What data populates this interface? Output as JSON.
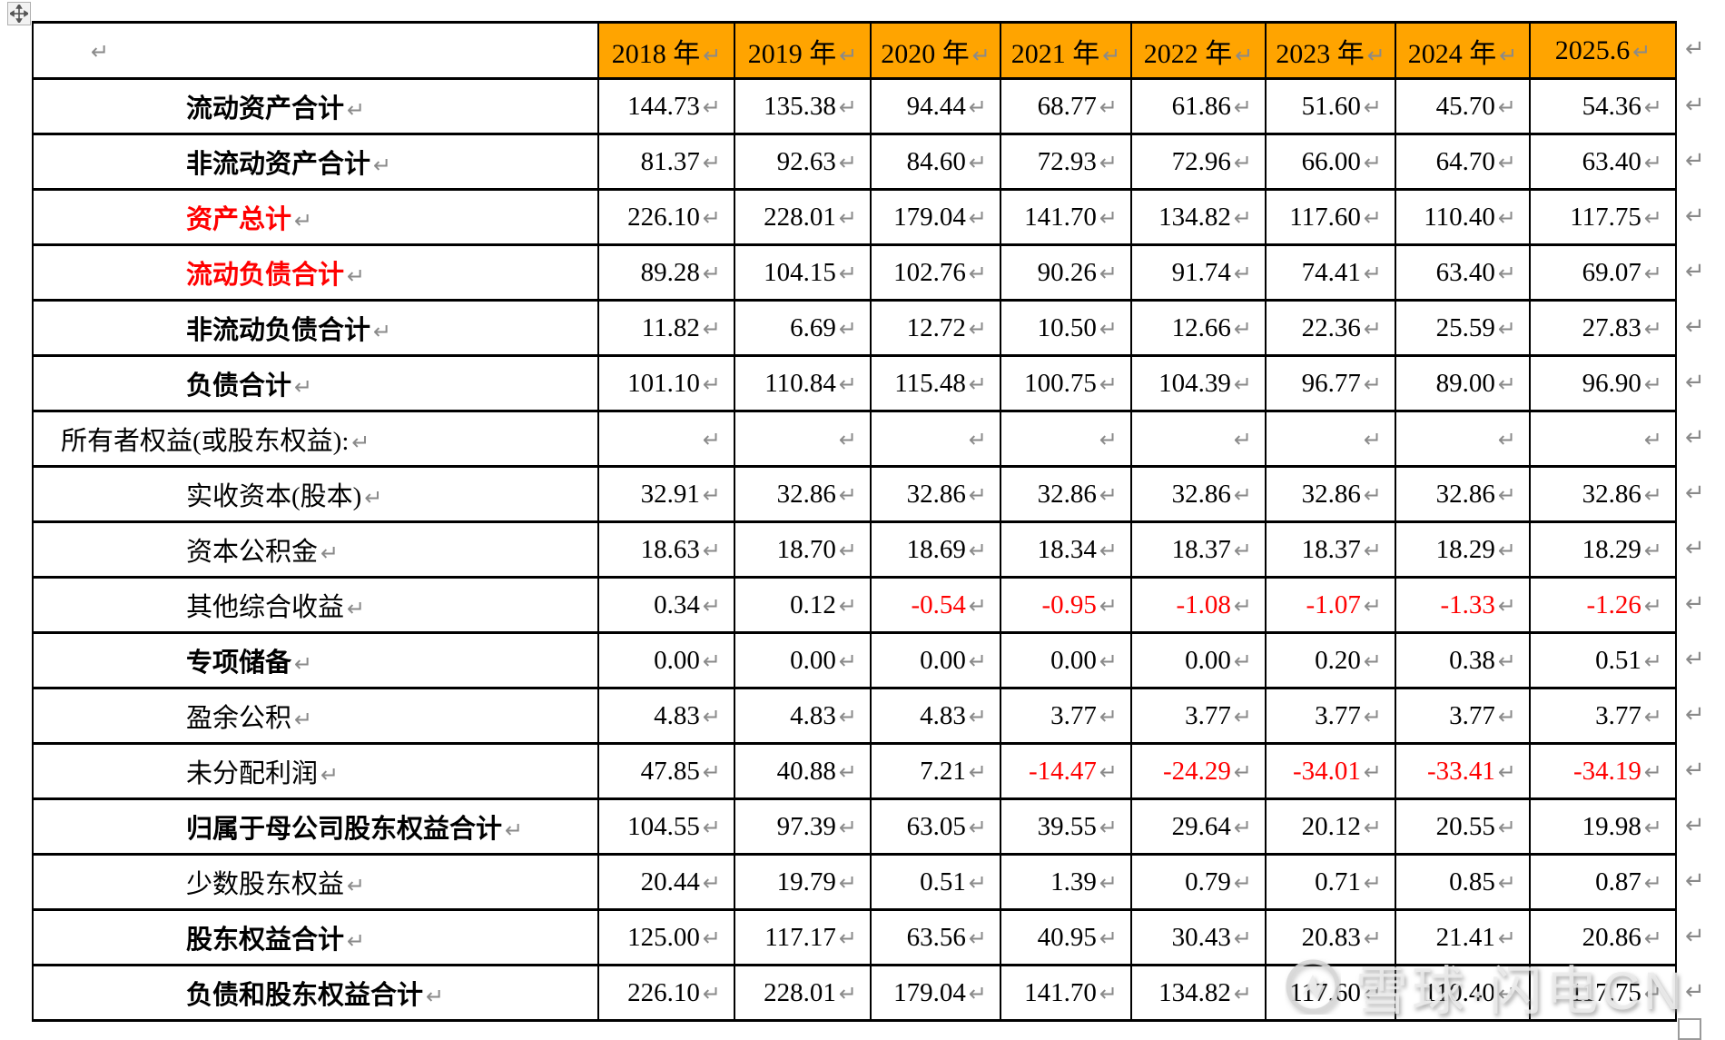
{
  "marks": {
    "cell_end": "↵",
    "row_end": "↵"
  },
  "colors": {
    "header_bg": "#FFA400",
    "negative_text": "#FF0000",
    "highlight_label": "#FF0000",
    "mark_gray": "#8A8A8A",
    "border": "#000000"
  },
  "table": {
    "header": {
      "corner": "",
      "columns": [
        "2018 年",
        "2019 年",
        "2020 年",
        "2021 年",
        "2022 年",
        "2023 年",
        "2024 年",
        "2025.6"
      ]
    },
    "rows": [
      {
        "label": "流动资产合计",
        "bold": true,
        "red": false,
        "section": false,
        "values": [
          "144.73",
          "135.38",
          "94.44",
          "68.77",
          "61.86",
          "51.60",
          "45.70",
          "54.36"
        ]
      },
      {
        "label": "非流动资产合计",
        "bold": true,
        "red": false,
        "section": false,
        "values": [
          "81.37",
          "92.63",
          "84.60",
          "72.93",
          "72.96",
          "66.00",
          "64.70",
          "63.40"
        ]
      },
      {
        "label": "资产总计",
        "bold": true,
        "red": true,
        "section": false,
        "values": [
          "226.10",
          "228.01",
          "179.04",
          "141.70",
          "134.82",
          "117.60",
          "110.40",
          "117.75"
        ]
      },
      {
        "label": "流动负债合计",
        "bold": true,
        "red": true,
        "section": false,
        "values": [
          "89.28",
          "104.15",
          "102.76",
          "90.26",
          "91.74",
          "74.41",
          "63.40",
          "69.07"
        ]
      },
      {
        "label": "非流动负债合计",
        "bold": true,
        "red": false,
        "section": false,
        "values": [
          "11.82",
          "6.69",
          "12.72",
          "10.50",
          "12.66",
          "22.36",
          "25.59",
          "27.83"
        ]
      },
      {
        "label": "负债合计",
        "bold": true,
        "red": false,
        "section": false,
        "values": [
          "101.10",
          "110.84",
          "115.48",
          "100.75",
          "104.39",
          "96.77",
          "89.00",
          "96.90"
        ]
      },
      {
        "label": "所有者权益(或股东权益):",
        "bold": false,
        "red": false,
        "section": true,
        "values": [
          "",
          "",
          "",
          "",
          "",
          "",
          "",
          ""
        ]
      },
      {
        "label": "实收资本(股本)",
        "bold": false,
        "red": false,
        "section": false,
        "values": [
          "32.91",
          "32.86",
          "32.86",
          "32.86",
          "32.86",
          "32.86",
          "32.86",
          "32.86"
        ]
      },
      {
        "label": "资本公积金",
        "bold": false,
        "red": false,
        "section": false,
        "values": [
          "18.63",
          "18.70",
          "18.69",
          "18.34",
          "18.37",
          "18.37",
          "18.29",
          "18.29"
        ]
      },
      {
        "label": "其他综合收益",
        "bold": false,
        "red": false,
        "section": false,
        "values": [
          "0.34",
          "0.12",
          "-0.54",
          "-0.95",
          "-1.08",
          "-1.07",
          "-1.33",
          "-1.26"
        ]
      },
      {
        "label": "专项储备",
        "bold": true,
        "red": false,
        "section": false,
        "values": [
          "0.00",
          "0.00",
          "0.00",
          "0.00",
          "0.00",
          "0.20",
          "0.38",
          "0.51"
        ]
      },
      {
        "label": "盈余公积",
        "bold": false,
        "red": false,
        "section": false,
        "values": [
          "4.83",
          "4.83",
          "4.83",
          "3.77",
          "3.77",
          "3.77",
          "3.77",
          "3.77"
        ]
      },
      {
        "label": "未分配利润",
        "bold": false,
        "red": false,
        "section": false,
        "values": [
          "47.85",
          "40.88",
          "7.21",
          "-14.47",
          "-24.29",
          "-34.01",
          "-33.41",
          "-34.19"
        ]
      },
      {
        "label": "归属于母公司股东权益合计",
        "bold": true,
        "red": false,
        "section": false,
        "values": [
          "104.55",
          "97.39",
          "63.05",
          "39.55",
          "29.64",
          "20.12",
          "20.55",
          "19.98"
        ]
      },
      {
        "label": "少数股东权益",
        "bold": false,
        "red": false,
        "section": false,
        "values": [
          "20.44",
          "19.79",
          "0.51",
          "1.39",
          "0.79",
          "0.71",
          "0.85",
          "0.87"
        ]
      },
      {
        "label": "股东权益合计",
        "bold": true,
        "red": false,
        "section": false,
        "values": [
          "125.00",
          "117.17",
          "63.56",
          "40.95",
          "30.43",
          "20.83",
          "21.41",
          "20.86"
        ]
      },
      {
        "label": "负债和股东权益合计",
        "bold": true,
        "red": false,
        "section": false,
        "values": [
          "226.10",
          "228.01",
          "179.04",
          "141.70",
          "134.82",
          "117.60",
          "110.40",
          "117.75"
        ]
      }
    ]
  },
  "watermark": {
    "text": "雪球·闪电CN"
  }
}
